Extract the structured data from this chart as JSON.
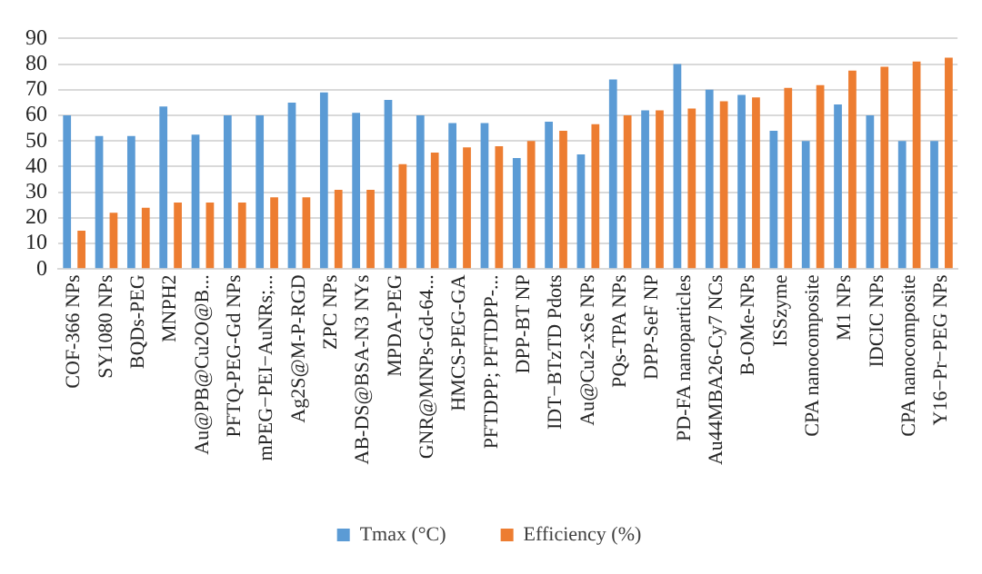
{
  "chart_data": {
    "type": "bar",
    "categories": [
      "COF-366 NPs",
      "SY1080 NPs",
      "BQDs-PEG",
      "MNPH2",
      "Au@PB@Cu2O@B...",
      "PFTQ-PEG-Gd NPs",
      "mPEG−PEI−AuNRs;...",
      "Ag2S@M-P-RGD",
      "ZPC NPs",
      "AB-DS@BSA-N3 NYs",
      "MPDA-PEG",
      "GNR@MNPs-Gd-64...",
      "HMCS-PEG-GA",
      "PFTDPP; PFTDPP-...",
      "DPP-BT NP",
      "IDT−BTzTD Pdots",
      "Au@Cu2-xSe NPs",
      "PQs-TPA NPs",
      "DPP-SeF NP",
      "PD-FA nanoparticles",
      "Au44MBA26-Cy7 NCs",
      "B-OMe-NPs",
      "ISSzyme",
      "CPA nanocomposite",
      "M1 NPs",
      "IDCIC NPs",
      "CPA nanocomposite",
      "Y16−Pr−PEG NPs"
    ],
    "series": [
      {
        "name": "Tmax (°C)",
        "color": "#5b9bd5",
        "values": [
          60,
          52,
          52,
          63.5,
          52.5,
          60,
          60,
          65,
          69,
          61,
          66,
          60,
          57,
          57,
          43.4,
          57.5,
          44.8,
          74,
          62,
          80,
          70,
          68,
          54,
          50,
          64.3,
          60,
          50,
          50
        ]
      },
      {
        "name": "Efficiency (%)",
        "color": "#ed7d31",
        "values": [
          15,
          22,
          24,
          26,
          26,
          26,
          28,
          28,
          31,
          31,
          41,
          45.5,
          47.5,
          48,
          50,
          54,
          56.6,
          60,
          62,
          62.7,
          65.5,
          67,
          70.7,
          71.8,
          77.5,
          79,
          81,
          82.5
        ]
      }
    ],
    "ylim": [
      0,
      90
    ],
    "yticks": [
      0,
      10,
      20,
      30,
      40,
      50,
      60,
      70,
      80,
      90
    ],
    "grid": "y",
    "legend": "bottom"
  }
}
